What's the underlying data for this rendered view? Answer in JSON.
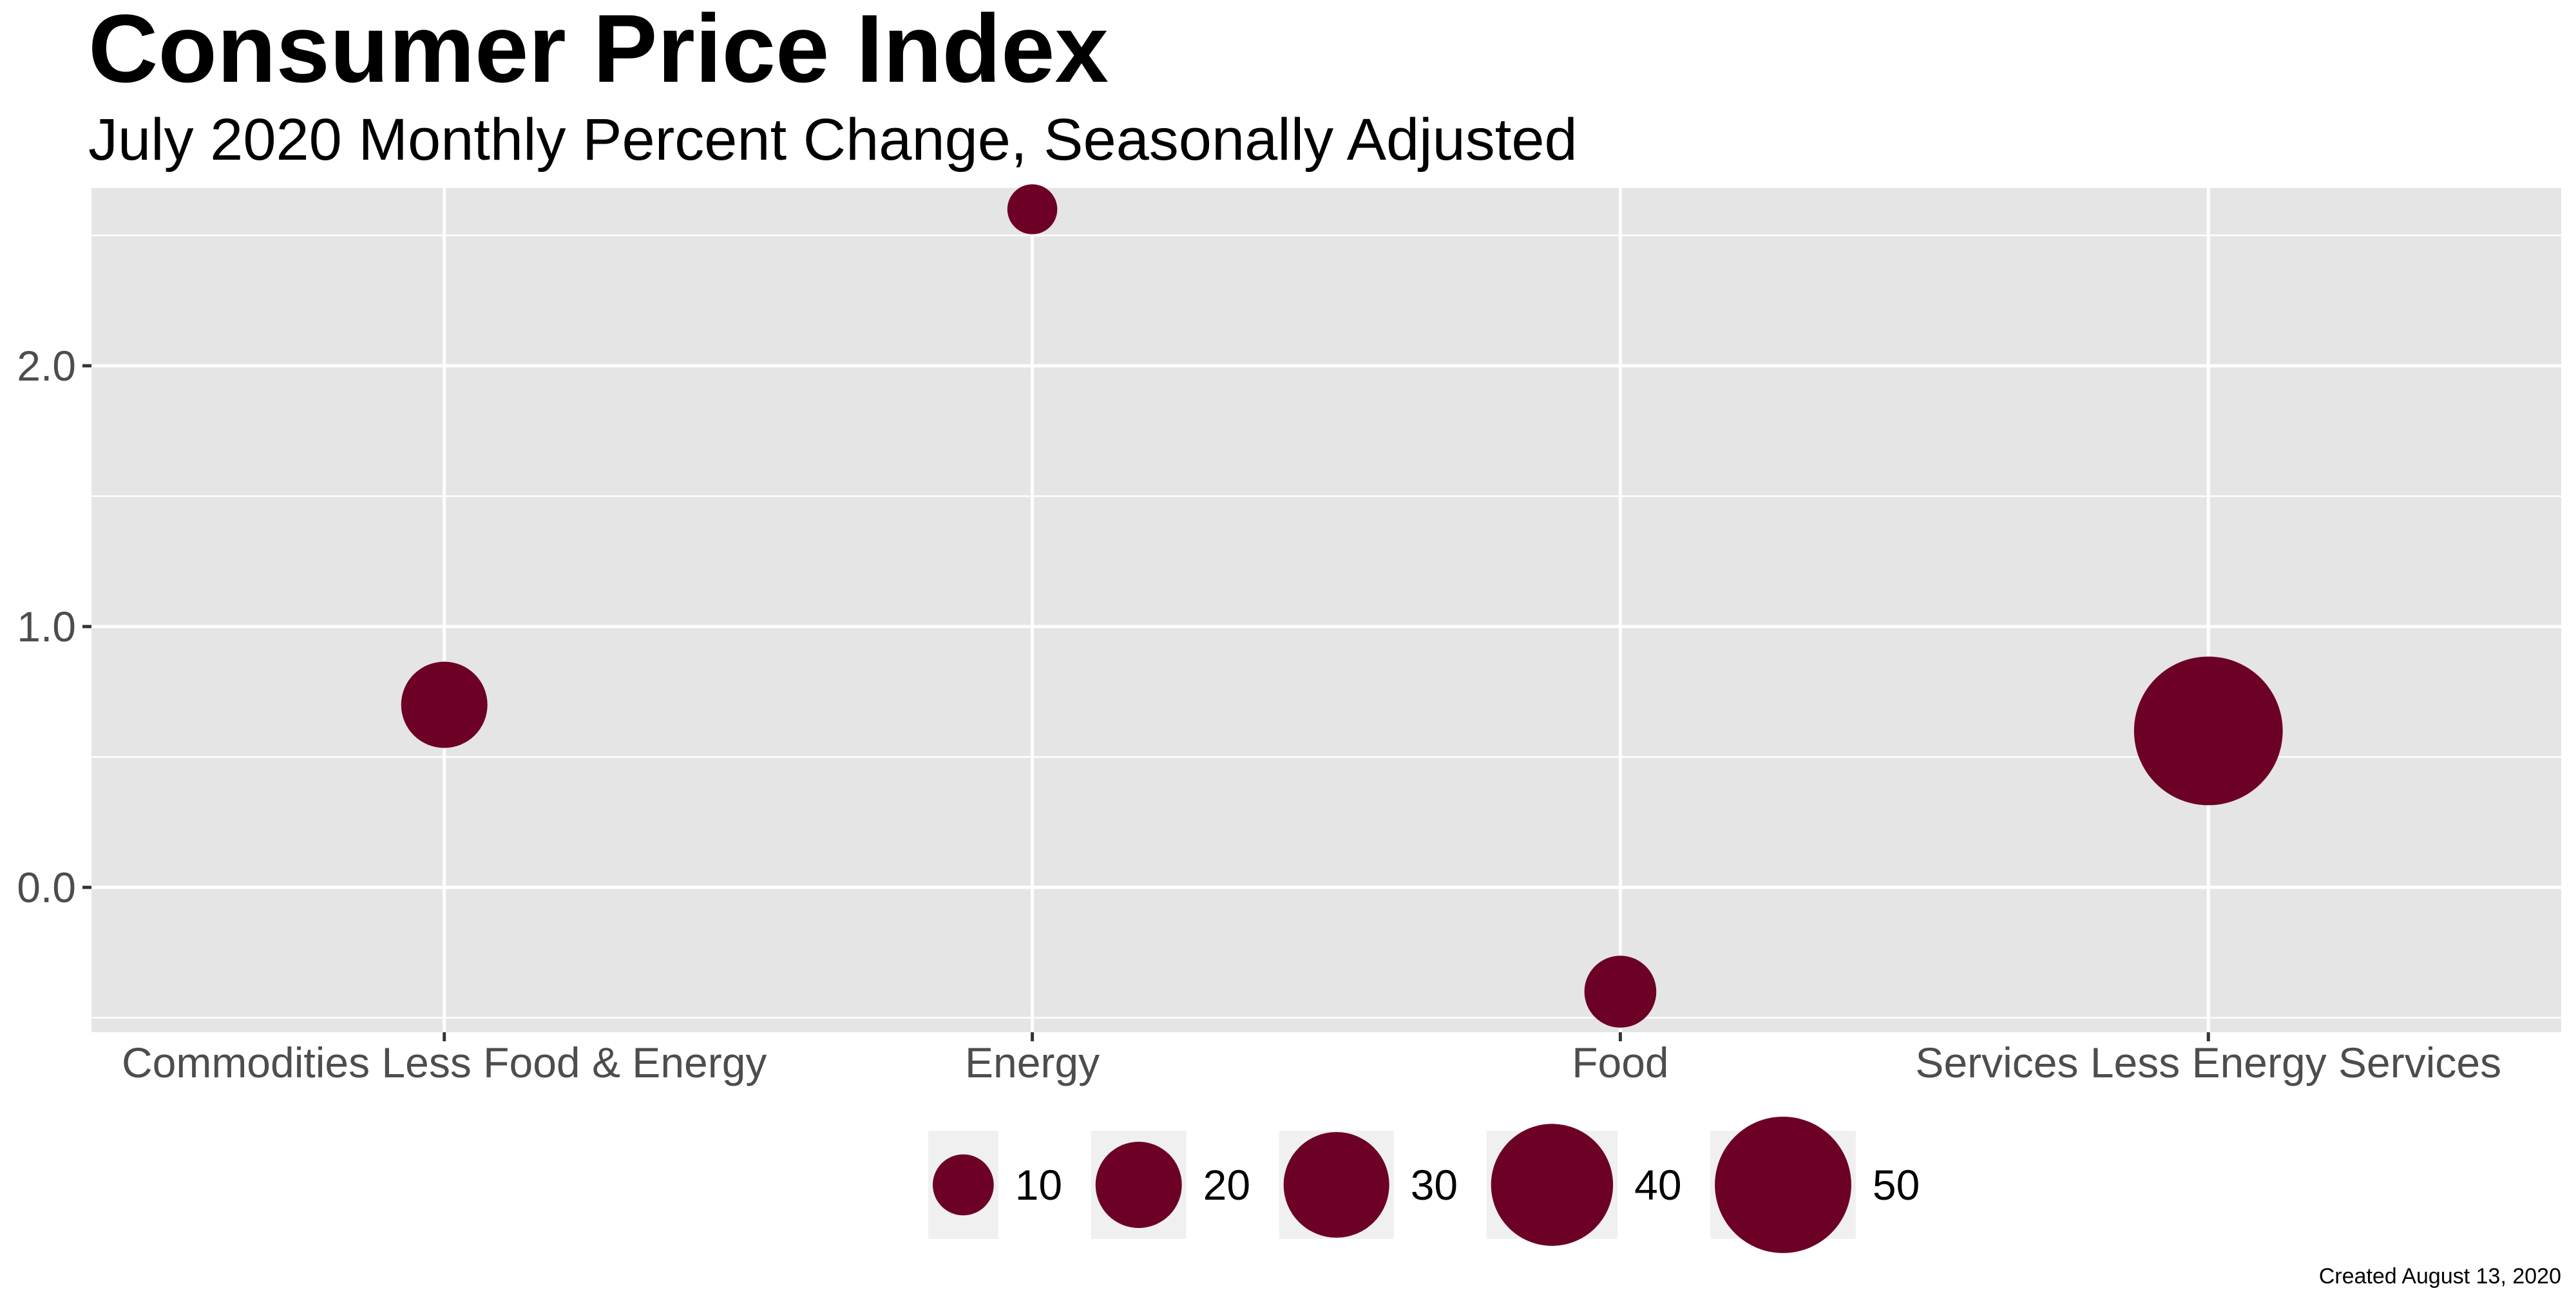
{
  "chart_data": {
    "type": "scatter",
    "title": "Consumer Price Index",
    "subtitle": "July 2020 Monthly Percent Change, Seasonally Adjusted",
    "caption": "Created August 13, 2020",
    "xlabel": "",
    "ylabel": "",
    "categories": [
      "Commodities Less Food & Energy",
      "Energy",
      "Food",
      "Services Less Energy Services"
    ],
    "values": [
      0.7,
      2.6,
      -0.4,
      0.6
    ],
    "sizes": [
      20.0,
      6.7,
      13.9,
      59.4
    ],
    "ylim": [
      -0.55,
      2.7
    ],
    "yticks": [
      0.0,
      1.0,
      2.0
    ],
    "ytick_labels": [
      "0.0",
      "1.0",
      "2.0"
    ],
    "grid": true,
    "legend": {
      "position": "bottom",
      "entries": [
        {
          "value": 10,
          "label": "10"
        },
        {
          "value": 20,
          "label": "20"
        },
        {
          "value": 30,
          "label": "30"
        },
        {
          "value": 40,
          "label": "40"
        },
        {
          "value": 50,
          "label": "50"
        }
      ]
    },
    "colors": {
      "point": "#6d0026",
      "panel": "#e5e5e5",
      "grid": "#ffffff",
      "legend_key": "#f0f0f0",
      "tick_text": "#4d4d4d"
    }
  }
}
